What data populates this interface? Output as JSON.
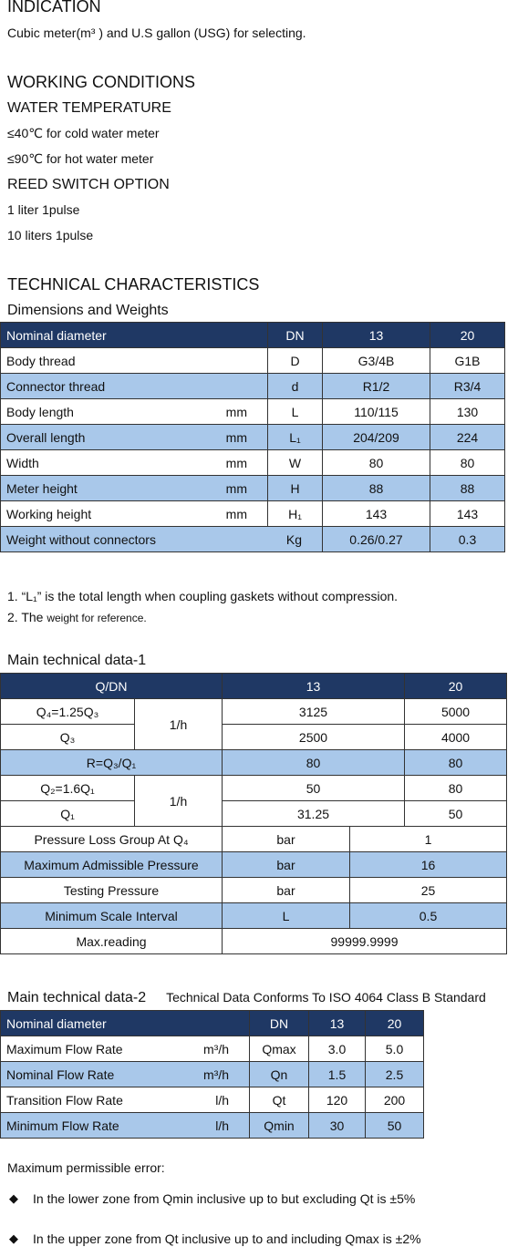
{
  "indication": {
    "title": "INDICATION",
    "text": "Cubic meter(m³ ) and U.S gallon (USG) for selecting."
  },
  "working": {
    "title": "WORKING CONDITIONS",
    "water_title": "WATER TEMPERATURE",
    "water_items": [
      "≤40℃ for cold water meter",
      "≤90℃ for hot water meter"
    ],
    "reed_title": "REED SWITCH OPTION",
    "reed_items": [
      "1 liter 1pulse",
      "10 liters 1pulse"
    ]
  },
  "technical": {
    "title": "TECHNICAL CHARACTERISTICS",
    "dims_title": "Dimensions and Weights",
    "dims_table": {
      "header": [
        "Nominal diameter",
        "DN",
        "13",
        "20"
      ],
      "rows": [
        {
          "name": "Body thread",
          "symbol": "D",
          "v13": "G3/4B",
          "v20": "G1B"
        },
        {
          "name": "Connector thread",
          "symbol": "d",
          "v13": "R1/2",
          "v20": "R3/4"
        },
        {
          "name": "Body length",
          "unit": "mm",
          "symbol": "L",
          "v13": "110/115",
          "v20": "130"
        },
        {
          "name": "Overall length",
          "unit": "mm",
          "symbol": "L₁",
          "v13": "204/209",
          "v20": "224"
        },
        {
          "name": "Width",
          "unit": "mm",
          "symbol": "W",
          "v13": "80",
          "v20": "80"
        },
        {
          "name": "Meter height",
          "unit": "mm",
          "symbol": "H",
          "v13": "88",
          "v20": "88"
        },
        {
          "name": "Working height",
          "unit": "mm",
          "symbol": "H₁",
          "v13": "143",
          "v20": "143"
        },
        {
          "name": "Weight without connectors",
          "unit": "Kg",
          "v13": "0.26/0.27",
          "v20": "0.3"
        }
      ]
    },
    "notes": {
      "note1": "1. “L₁” is the total length when coupling gaskets without compression.",
      "note2_prefix": "2. The",
      "note2_text": "weight for reference."
    }
  },
  "data1": {
    "title": "Main technical data-1",
    "header": [
      "Q/DN",
      "13",
      "20"
    ],
    "rows": [
      {
        "label": "Q₄=1.25Q₃",
        "unit": "1/h",
        "v13": "3125",
        "v20": "5000"
      },
      {
        "label": "Q₃",
        "v13": "2500",
        "v20": "4000"
      },
      {
        "label": "R=Q₃/Q₁",
        "v13": "80",
        "v20": "80"
      },
      {
        "label": "Q₂=1.6Q₁",
        "unit": "1/h",
        "v13": "50",
        "v20": "80"
      },
      {
        "label": "Q₁",
        "v13": "31.25",
        "v20": "50"
      },
      {
        "label": "Pressure Loss Group At Q₄",
        "unit": "bar",
        "value": "1"
      },
      {
        "label": "Maximum Admissible Pressure",
        "unit": "bar",
        "value": "16"
      },
      {
        "label": "Testing Pressure",
        "unit": "bar",
        "value": "25"
      },
      {
        "label": "Minimum Scale Interval",
        "unit": "L",
        "value": "0.5"
      },
      {
        "label": "Max.reading",
        "value": "99999.9999"
      }
    ]
  },
  "data2": {
    "title": "Main technical data-2",
    "standard": "Technical Data Conforms To ISO 4064 Class B Standard",
    "header": [
      "Nominal diameter",
      "DN",
      "13",
      "20"
    ],
    "rows": [
      {
        "name": "Maximum Flow Rate",
        "unit": "m³/h",
        "symbol": "Qmax",
        "v13": "3.0",
        "v20": "5.0"
      },
      {
        "name": "Nominal Flow Rate",
        "unit": "m³/h",
        "symbol": "Qn",
        "v13": "1.5",
        "v20": "2.5"
      },
      {
        "name": "Transition Flow Rate",
        "unit": "l/h",
        "symbol": "Qt",
        "v13": "120",
        "v20": "200"
      },
      {
        "name": "Minimum Flow Rate",
        "unit": "l/h",
        "symbol": "Qmin",
        "v13": "30",
        "v20": "50"
      }
    ]
  },
  "error": {
    "title": "Maximum permissible error:",
    "items": [
      "In the lower zone from Qmin inclusive up to but excluding Qt is  ±5%",
      "In the upper zone from Qt inclusive up to and including Qmax is  ±2%"
    ]
  }
}
